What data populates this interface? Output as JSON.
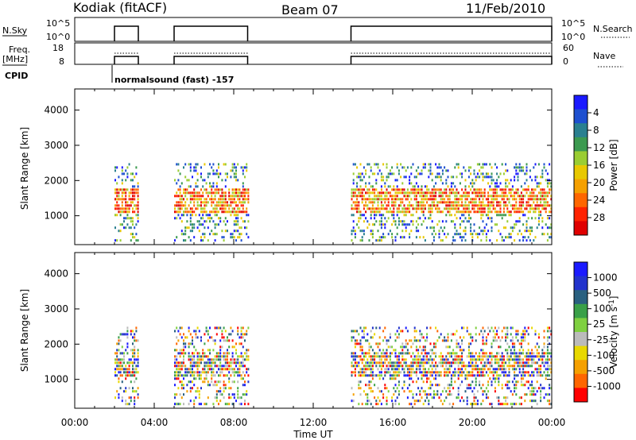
{
  "header": {
    "station": "Kodiak (fitACF)",
    "beam": "Beam 07",
    "date": "11/Feb/2010"
  },
  "labels": {
    "nsky": "N.Sky",
    "nsearch": "N.Search",
    "freq_line1": "Freq.",
    "freq_line2": "[MHz]",
    "nave": "Nave",
    "cpid": "CPID",
    "cpid_mode": "normalsound (fast) -157",
    "slant_range": "Slant Range [km]",
    "time_axis": "Time UT",
    "power_label": "Power [dB]",
    "velocity_label": "Velocity [m s^-1]",
    "velocity_label_main": "Velocity [m s",
    "velocity_label_sup": "-1",
    "velocity_label_end": "]"
  },
  "noise_panel": {
    "left_ticks": [
      "10^5",
      "10^0"
    ],
    "right_ticks": [
      "10^5",
      "10^0"
    ]
  },
  "freq_panel": {
    "left_ticks": [
      "18",
      "8"
    ],
    "right_ticks": [
      "60",
      "0"
    ]
  },
  "chart_data": [
    {
      "type": "heatmap",
      "name": "power",
      "x_ticks": [
        "00:00",
        "04:00",
        "08:00",
        "12:00",
        "16:00",
        "20:00",
        "00:00"
      ],
      "y_ticks": [
        "1000",
        "2000",
        "3000",
        "4000"
      ],
      "xlim_hours": [
        0,
        24
      ],
      "ylim_km": [
        180,
        4600
      ],
      "colorbar_ticks": [
        "4",
        "8",
        "12",
        "16",
        "20",
        "24",
        "28"
      ],
      "colorbar_colors": [
        "#1a1aff",
        "#1e50d0",
        "#2a8090",
        "#3c9a50",
        "#9acd32",
        "#e8c800",
        "#f5a000",
        "#ff6600",
        "#ff2200",
        "#e00000"
      ],
      "data_blocks_hours": [
        [
          2.0,
          3.2
        ],
        [
          5.0,
          8.7
        ],
        [
          13.9,
          24.0
        ]
      ],
      "range_band_km": [
        300,
        2500
      ]
    },
    {
      "type": "heatmap",
      "name": "velocity",
      "x_ticks": [
        "00:00",
        "04:00",
        "08:00",
        "12:00",
        "16:00",
        "20:00",
        "00:00"
      ],
      "y_ticks": [
        "1000",
        "2000",
        "3000",
        "4000"
      ],
      "xlim_hours": [
        0,
        24
      ],
      "ylim_km": [
        180,
        4600
      ],
      "colorbar_ticks": [
        "1000",
        "500",
        "100",
        "25",
        "-25",
        "-100",
        "-500",
        "-1000"
      ],
      "colorbar_colors": [
        "#1a1aff",
        "#2233cc",
        "#2a6080",
        "#3aa048",
        "#7fd040",
        "#bbbbbb",
        "#e8d800",
        "#f5a000",
        "#ff6600",
        "#ff0000"
      ],
      "data_blocks_hours": [
        [
          2.0,
          3.2
        ],
        [
          5.0,
          8.7
        ],
        [
          13.9,
          24.0
        ]
      ],
      "range_band_km": [
        300,
        2500
      ]
    }
  ]
}
